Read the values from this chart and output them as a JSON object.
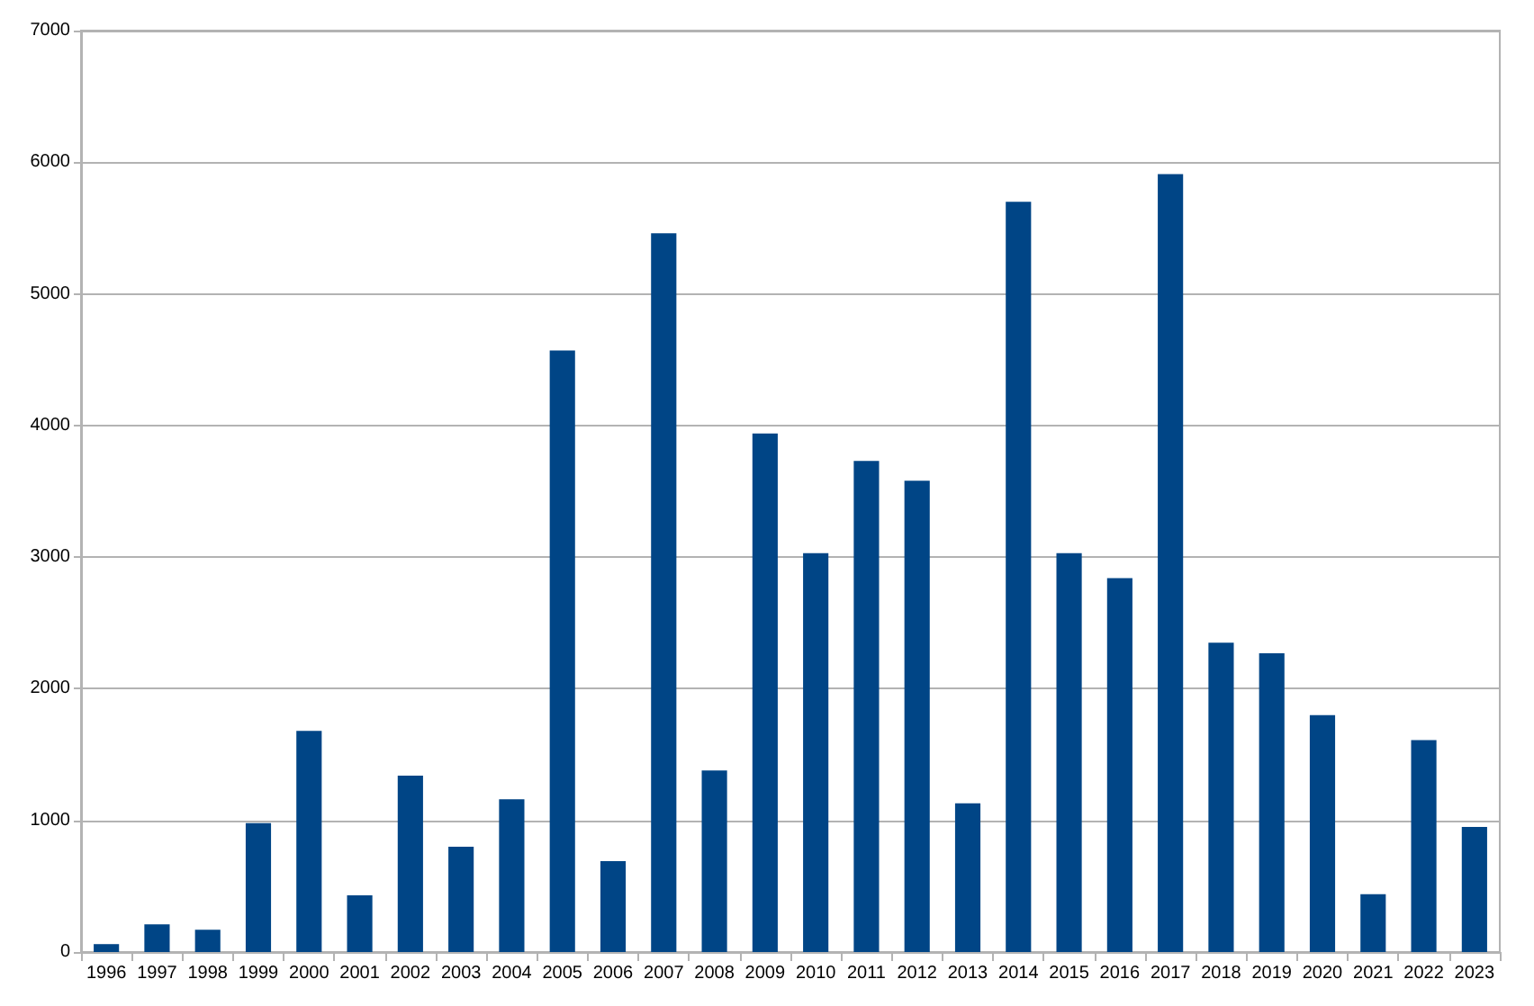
{
  "chart_data": {
    "type": "bar",
    "categories": [
      "1996",
      "1997",
      "1998",
      "1999",
      "2000",
      "2001",
      "2002",
      "2003",
      "2004",
      "2005",
      "2006",
      "2007",
      "2008",
      "2009",
      "2010",
      "2011",
      "2012",
      "2013",
      "2014",
      "2015",
      "2016",
      "2017",
      "2018",
      "2019",
      "2020",
      "2021",
      "2022",
      "2023"
    ],
    "values": [
      60,
      210,
      170,
      980,
      1680,
      430,
      1340,
      800,
      1160,
      4570,
      690,
      5460,
      1380,
      3940,
      3030,
      3730,
      3580,
      1130,
      5700,
      3030,
      2840,
      5910,
      2350,
      2270,
      1800,
      440,
      1610,
      950
    ],
    "color": "#004586",
    "ylim": [
      0,
      7000
    ],
    "yticks": [
      0,
      1000,
      2000,
      3000,
      4000,
      5000,
      6000,
      7000
    ],
    "grid": "y"
  }
}
